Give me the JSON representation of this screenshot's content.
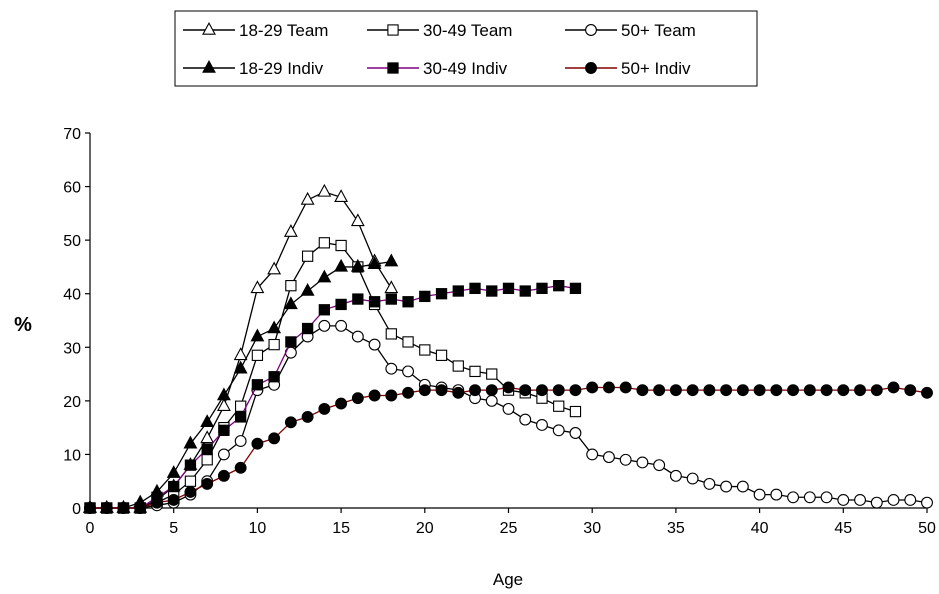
{
  "chart_data": {
    "type": "line",
    "title": "",
    "xlabel": "Age",
    "ylabel": "%",
    "xlim": [
      0,
      50
    ],
    "ylim": [
      0,
      70
    ],
    "xticks": [
      0,
      5,
      10,
      15,
      20,
      25,
      30,
      35,
      40,
      45,
      50
    ],
    "yticks": [
      0,
      10,
      20,
      30,
      40,
      50,
      60,
      70
    ],
    "grid": false,
    "legend_placement": "top",
    "series": [
      {
        "name": "18-29 Team",
        "marker": "triangle",
        "filled": false,
        "color": "#000000",
        "x": [
          0,
          1,
          2,
          3,
          4,
          5,
          6,
          7,
          8,
          9,
          10,
          11,
          12,
          13,
          14,
          15,
          16,
          17,
          18
        ],
        "y": [
          0,
          0,
          0,
          0,
          1.5,
          4,
          8,
          13,
          19,
          28.5,
          41,
          44.5,
          51.5,
          57.5,
          59,
          58,
          53.5,
          46,
          41
        ]
      },
      {
        "name": "30-49 Team",
        "marker": "square",
        "filled": false,
        "color": "#000000",
        "x": [
          0,
          1,
          2,
          3,
          4,
          5,
          6,
          7,
          8,
          9,
          10,
          11,
          12,
          13,
          14,
          15,
          16,
          17,
          18,
          19,
          20,
          21,
          22,
          23,
          24,
          25,
          26,
          27,
          28,
          29
        ],
        "y": [
          0,
          0,
          0,
          0,
          1,
          2.5,
          5,
          9,
          15,
          19,
          28.5,
          30.5,
          41.5,
          47,
          49.5,
          49,
          45,
          38,
          32.5,
          31,
          29.5,
          28.5,
          26.5,
          25.5,
          25,
          22,
          21.5,
          20.5,
          19,
          18
        ]
      },
      {
        "name": "50+ Team",
        "marker": "circle",
        "filled": false,
        "color": "#000000",
        "x": [
          0,
          1,
          2,
          3,
          4,
          5,
          6,
          7,
          8,
          9,
          10,
          11,
          12,
          13,
          14,
          15,
          16,
          17,
          18,
          19,
          20,
          21,
          22,
          23,
          24,
          25,
          26,
          27,
          28,
          29,
          30,
          31,
          32,
          33,
          34,
          35,
          36,
          37,
          38,
          39,
          40,
          41,
          42,
          43,
          44,
          45,
          46,
          47,
          48,
          49,
          50
        ],
        "y": [
          0,
          0,
          0,
          0,
          0.5,
          1,
          2.5,
          5,
          10,
          12.5,
          22,
          23,
          29,
          32,
          34,
          34,
          32,
          30.5,
          26,
          25.5,
          23,
          22.5,
          22,
          20.5,
          20,
          18.5,
          16.5,
          15.5,
          14.5,
          14,
          10,
          9.5,
          9,
          8.5,
          8,
          6,
          5.5,
          4.5,
          4,
          4,
          2.5,
          2.5,
          2,
          2,
          2,
          1.5,
          1.5,
          1,
          1.5,
          1.5,
          1
        ]
      },
      {
        "name": "18-29 Indiv",
        "marker": "triangle",
        "filled": true,
        "color": "#000000",
        "x": [
          0,
          1,
          2,
          3,
          4,
          5,
          6,
          7,
          8,
          9,
          10,
          11,
          12,
          13,
          14,
          15,
          16,
          17,
          18
        ],
        "y": [
          0,
          0,
          0,
          1,
          3,
          6.5,
          12,
          16,
          21,
          26,
          32,
          33.5,
          38,
          40.5,
          43,
          45,
          45,
          45.5,
          46
        ]
      },
      {
        "name": "30-49 Indiv",
        "marker": "square",
        "filled": true,
        "color": "#800080",
        "x": [
          0,
          1,
          2,
          3,
          4,
          5,
          6,
          7,
          8,
          9,
          10,
          11,
          12,
          13,
          14,
          15,
          16,
          17,
          18,
          19,
          20,
          21,
          22,
          23,
          24,
          25,
          26,
          27,
          28,
          29
        ],
        "y": [
          0,
          0,
          0,
          0,
          2,
          4,
          8,
          11,
          14.5,
          17,
          23,
          24.5,
          31,
          33.5,
          37,
          38,
          39,
          38.5,
          39,
          38.5,
          39.5,
          40,
          40.5,
          41,
          40.5,
          41,
          40.5,
          41,
          41.5,
          41
        ]
      },
      {
        "name": "50+ Indiv",
        "marker": "circle",
        "filled": true,
        "color": "#800000",
        "x": [
          0,
          1,
          2,
          3,
          4,
          5,
          6,
          7,
          8,
          9,
          10,
          11,
          12,
          13,
          14,
          15,
          16,
          17,
          18,
          19,
          20,
          21,
          22,
          23,
          24,
          25,
          26,
          27,
          28,
          29,
          30,
          31,
          32,
          33,
          34,
          35,
          36,
          37,
          38,
          39,
          40,
          41,
          42,
          43,
          44,
          45,
          46,
          47,
          48,
          49,
          50
        ],
        "y": [
          0,
          0,
          0,
          0,
          1,
          1.5,
          3,
          4.5,
          6,
          7.5,
          12,
          13,
          16,
          17,
          18.5,
          19.5,
          20.5,
          21,
          21,
          21.5,
          22,
          22,
          21.5,
          22,
          22,
          22.5,
          22,
          22,
          22,
          22,
          22.5,
          22.5,
          22.5,
          22,
          22,
          22,
          22,
          22,
          22,
          22,
          22,
          22,
          22,
          22,
          22,
          22,
          22,
          22,
          22.5,
          22,
          21.5
        ]
      }
    ]
  }
}
